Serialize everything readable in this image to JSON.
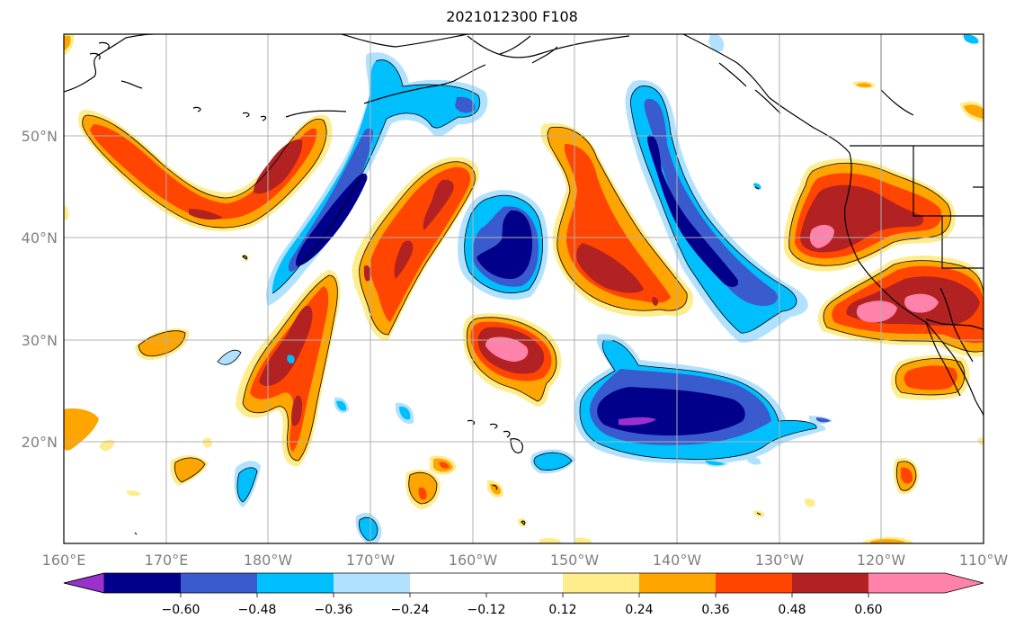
{
  "title": "2021012300 F108",
  "map": {
    "lat_labels": [
      "50°N",
      "40°N",
      "30°N",
      "20°N"
    ],
    "lat_values": [
      50,
      40,
      30,
      20
    ],
    "lon_labels": [
      "160°E",
      "170°E",
      "180°W",
      "170°W",
      "160°W",
      "150°W",
      "140°W",
      "130°W",
      "120°W",
      "110°W"
    ],
    "lon_values": [
      160,
      170,
      180,
      190,
      200,
      210,
      220,
      230,
      240,
      250
    ],
    "extent": {
      "lon_min": 160,
      "lon_max": 250,
      "lat_min": 10,
      "lat_max": 60
    },
    "grid": true,
    "coastlines": true
  },
  "colorbar": {
    "levels": [
      -0.6,
      -0.48,
      -0.36,
      -0.24,
      -0.12,
      0.12,
      0.24,
      0.36,
      0.48,
      0.6
    ],
    "labels": [
      "−0.60",
      "−0.48",
      "−0.36",
      "−0.24",
      "−0.12",
      "0.12",
      "0.24",
      "0.36",
      "0.48",
      "0.60"
    ],
    "colors": [
      "#9932cc",
      "#00008b",
      "#3a5bcd",
      "#00bfff",
      "#b0e2ff",
      "#ffffff",
      "#ffec8b",
      "#ffa500",
      "#ff4500",
      "#b22222",
      "#ff82ab"
    ],
    "extend": "both"
  },
  "colors": {
    "c_m60": "#9932cc",
    "c_m48": "#00008b",
    "c_m36": "#3a5bcd",
    "c_m24": "#00bfff",
    "c_m12": "#b0e2ff",
    "c_p12": "#ffec8b",
    "c_p24": "#ffa500",
    "c_p36": "#ff4500",
    "c_p48": "#b22222",
    "c_p60": "#ff82ab",
    "grid": "#b0b0b0",
    "coast": "#000000"
  }
}
